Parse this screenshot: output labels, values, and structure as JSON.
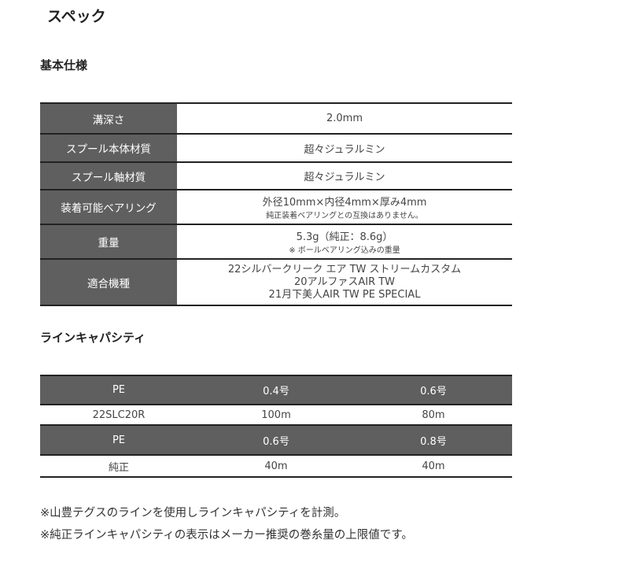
{
  "title": "スペック",
  "basic": {
    "heading": "基本仕様",
    "rows": [
      {
        "label": "溝深さ",
        "value": "2.0mm",
        "note": ""
      },
      {
        "label": "スプール本体材質",
        "value": "超々ジュラルミン",
        "note": ""
      },
      {
        "label": "スプール軸材質",
        "value": "超々ジュラルミン",
        "note": ""
      },
      {
        "label": "装着可能ベアリング",
        "value": "外径10mm×内径4mm×厚み4mm",
        "note": "純正装着ベアリングとの互換はありません。"
      },
      {
        "label": "重量",
        "value": "5.3g（純正：8.6g）",
        "note": "※ ボールベアリング込みの重量"
      },
      {
        "label": "適合機種",
        "lines": [
          "22シルバークリーク エア TW ストリームカスタム",
          "20アルファスAIR TW",
          "21月下美人AIR TW PE SPECIAL"
        ]
      }
    ]
  },
  "capacity": {
    "heading": "ラインキャパシティ",
    "rows": [
      {
        "type": "header",
        "cells": [
          "PE",
          "0.4号",
          "0.6号"
        ]
      },
      {
        "type": "data",
        "cells": [
          "22SLC20R",
          "100m",
          "80m"
        ]
      },
      {
        "type": "header",
        "cells": [
          "PE",
          "0.6号",
          "0.8号"
        ]
      },
      {
        "type": "data",
        "cells": [
          "純正",
          "40m",
          "40m"
        ]
      }
    ]
  },
  "notes": [
    "※山豊テグスのラインを使用しラインキャパシティを計測。",
    "※純正ラインキャパシティの表示はメーカー推奨の巻糸量の上限値です。"
  ]
}
